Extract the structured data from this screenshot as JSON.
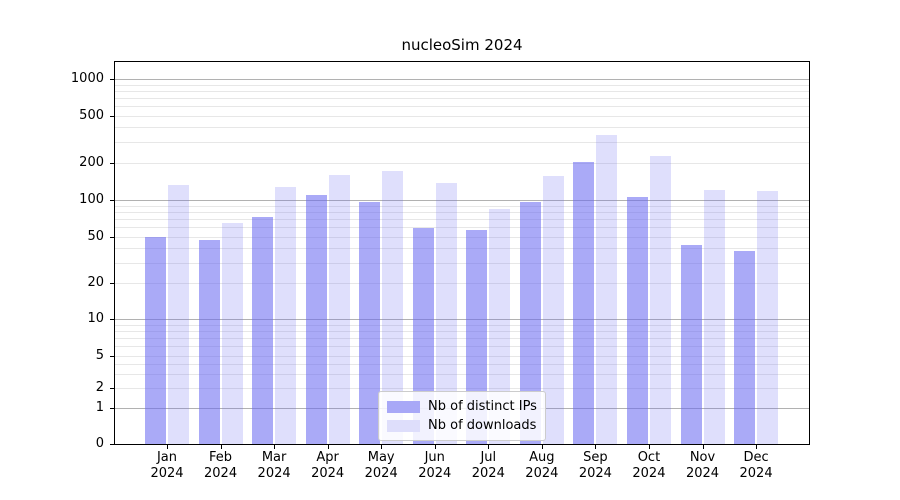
{
  "figure": {
    "background": "#ffffff",
    "spine_color": "#000000",
    "grid_major_color": "#b1b1b1",
    "grid_minor_color": "#e7e7e7"
  },
  "chart_data": {
    "type": "bar",
    "title": "nucleoSim 2024",
    "xlabel": "",
    "ylabel": "",
    "yscale": "log-like",
    "ylim": [
      0,
      1000
    ],
    "yticks": [
      0,
      1,
      2,
      5,
      10,
      20,
      50,
      100,
      200,
      500,
      1000
    ],
    "ytick_labels": [
      "0",
      "1",
      "2",
      "5",
      "10",
      "20",
      "50",
      "100",
      "200",
      "500",
      "1000"
    ],
    "grid": true,
    "legend_position": "lower center",
    "categories": [
      "Jan 2024",
      "Feb 2024",
      "Mar 2024",
      "Apr 2024",
      "May 2024",
      "Jun 2024",
      "Jul 2024",
      "Aug 2024",
      "Sep 2024",
      "Oct 2024",
      "Nov 2024",
      "Dec 2024"
    ],
    "series": [
      {
        "name": "Nb of distinct IPs",
        "color": "rgba(103,103,240,0.56)",
        "color_on_white": "#a8a8f7",
        "values": [
          50,
          47,
          73,
          110,
          97,
          59,
          57,
          96,
          205,
          106,
          43,
          38
        ]
      },
      {
        "name": "Nb of downloads",
        "color": "rgba(103,103,240,0.21)",
        "color_on_white": "#dedefb",
        "values": [
          132,
          65,
          128,
          160,
          172,
          138,
          85,
          157,
          345,
          230,
          121,
          118
        ]
      }
    ]
  }
}
